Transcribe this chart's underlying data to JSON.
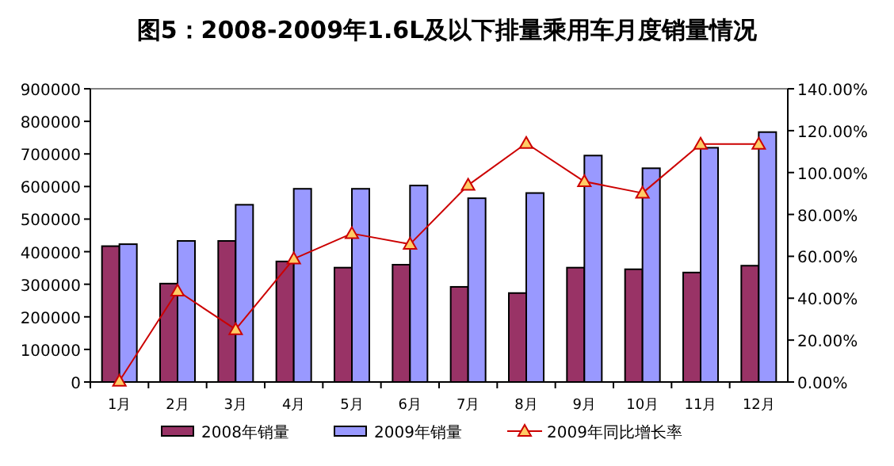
{
  "chart_data": {
    "type": "bar",
    "title": "图5：2008-2009年1.6L及以下排量乘用车月度销量情况",
    "categories": [
      "1月",
      "2月",
      "3月",
      "4月",
      "5月",
      "6月",
      "7月",
      "8月",
      "9月",
      "10月",
      "11月",
      "12月"
    ],
    "series": [
      {
        "name": "2008年销量",
        "color": "#993366",
        "values": [
          417000,
          302000,
          433000,
          370000,
          351000,
          360000,
          292000,
          273000,
          351000,
          346000,
          336000,
          357000
        ]
      },
      {
        "name": "2009年销量",
        "color": "#9999ff",
        "values": [
          423000,
          433000,
          544000,
          593000,
          593000,
          603000,
          564000,
          580000,
          695000,
          656000,
          719000,
          767000
        ]
      },
      {
        "name": "2009年同比增长率",
        "type": "line",
        "axis": "y2",
        "color": "#cc0000",
        "marker": "triangle",
        "values": [
          0.5,
          43.5,
          25.1,
          58.8,
          70.9,
          65.8,
          94,
          114,
          95.7,
          90.2,
          113.6,
          113.6
        ]
      }
    ],
    "ylim": [
      0,
      900000
    ],
    "yticks": [
      0,
      100000,
      200000,
      300000,
      400000,
      500000,
      600000,
      700000,
      800000,
      900000
    ],
    "y2lim": [
      0,
      140
    ],
    "y2ticks": [
      {
        "value": 0,
        "label": "0.00%"
      },
      {
        "value": 20,
        "label": "20.00%"
      },
      {
        "value": 40,
        "label": "40.00%"
      },
      {
        "value": 60,
        "label": "60.00%"
      },
      {
        "value": 80,
        "label": "80.00%"
      },
      {
        "value": 100,
        "label": "100.00%"
      },
      {
        "value": 120,
        "label": "120.00%"
      },
      {
        "value": 140,
        "label": "140.00%"
      }
    ],
    "legend": "bottom"
  }
}
